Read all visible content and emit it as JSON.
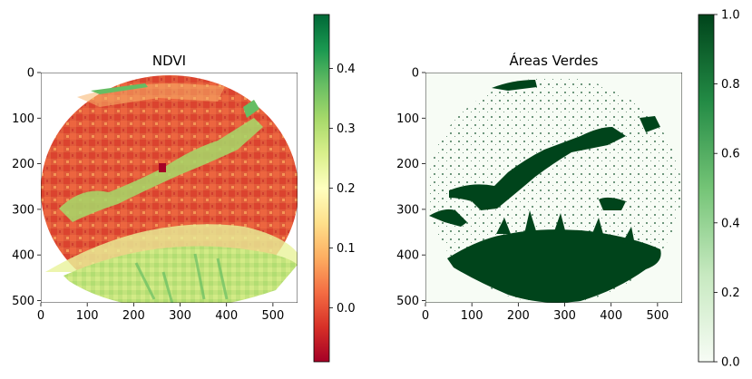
{
  "chart_data": [
    {
      "type": "heatmap",
      "title": "NDVI",
      "xlabel": "",
      "ylabel": "",
      "xlim": [
        0,
        553
      ],
      "ylim": [
        505,
        0
      ],
      "x_ticks": [
        0,
        100,
        200,
        300,
        400,
        500
      ],
      "y_ticks": [
        0,
        100,
        200,
        300,
        400,
        500
      ],
      "colormap": "RdYlGn",
      "colorbar": {
        "range": [
          -0.09,
          0.49
        ],
        "ticks": [
          0.0,
          0.1,
          0.2,
          0.3,
          0.4
        ],
        "tick_labels": [
          "0.0",
          "0.1",
          "0.2",
          "0.3",
          "0.4"
        ]
      },
      "mask": "circular city-limit region, white outside"
    },
    {
      "type": "heatmap",
      "title": "Áreas Verdes",
      "xlabel": "",
      "ylabel": "",
      "xlim": [
        0,
        553
      ],
      "ylim": [
        505,
        0
      ],
      "x_ticks": [
        0,
        100,
        200,
        300,
        400,
        500
      ],
      "y_ticks": [
        0,
        100,
        200,
        300,
        400,
        500
      ],
      "colormap": "Greens",
      "colorbar": {
        "range": [
          0.0,
          1.0
        ],
        "ticks": [
          0.0,
          0.2,
          0.4,
          0.6,
          0.8,
          1.0
        ],
        "tick_labels": [
          "0.0",
          "0.2",
          "0.4",
          "0.6",
          "0.8",
          "1.0"
        ]
      },
      "mask": "binary green-area classification"
    }
  ],
  "colors": {
    "ndvi_low": "#a50026",
    "ndvi_mid": "#ffffbf",
    "ndvi_high": "#006837",
    "greens_low": "#f7fcf5",
    "greens_high": "#00441b"
  }
}
